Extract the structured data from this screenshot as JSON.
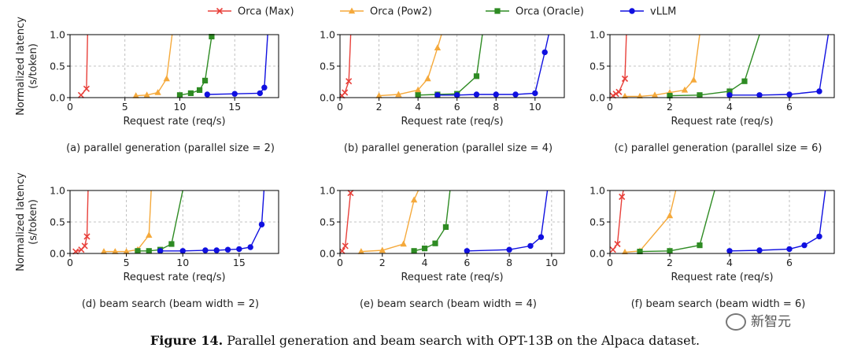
{
  "figure": {
    "caption_label": "Figure 14.",
    "caption_text": "Parallel generation and beam search with OPT-13B on the Alpaca dataset."
  },
  "watermark": {
    "text": "新智元",
    "icon": "wechat-bubble-icon"
  },
  "colors": {
    "orca_max": "#e8403a",
    "orca_pow2": "#f5a93b",
    "orca_oracle": "#2e8b23",
    "vllm": "#1010e0"
  },
  "legend": [
    {
      "name": "Orca (Max)",
      "marker": "x",
      "color": "#e8403a"
    },
    {
      "name": "Orca (Pow2)",
      "marker": "triangle",
      "color": "#f5a93b"
    },
    {
      "name": "Orca (Oracle)",
      "marker": "square",
      "color": "#2e8b23"
    },
    {
      "name": "vLLM",
      "marker": "circle",
      "color": "#1010e0"
    }
  ],
  "chart_data": [
    {
      "type": "line",
      "xlabel": "Request rate (req/s)",
      "ylabel": "Normalized latency (s/token)",
      "xlim": [
        0,
        19
      ],
      "ylim": [
        0,
        1
      ],
      "xticks": [
        "0",
        "5",
        "10",
        "15"
      ],
      "yticks": [
        "0.0",
        "0.5",
        "1.0"
      ],
      "caption": "(a) parallel generation (parallel size = 2)",
      "series": [
        {
          "name": "Orca (Max)",
          "x": [
            1.0,
            1.5,
            1.6
          ],
          "y": [
            0.04,
            0.14,
            1.0
          ]
        },
        {
          "name": "Orca (Pow2)",
          "x": [
            6.0,
            7.0,
            8.0,
            8.8,
            9.3
          ],
          "y": [
            0.03,
            0.04,
            0.08,
            0.3,
            1.0
          ]
        },
        {
          "name": "Orca (Oracle)",
          "x": [
            10.0,
            11.0,
            11.8,
            12.3,
            12.9
          ],
          "y": [
            0.04,
            0.07,
            0.12,
            0.27,
            0.97
          ]
        },
        {
          "name": "vLLM",
          "x": [
            12.5,
            15.0,
            17.3,
            17.7,
            18.0
          ],
          "y": [
            0.05,
            0.06,
            0.07,
            0.16,
            1.0
          ]
        }
      ]
    },
    {
      "type": "line",
      "xlabel": "Request rate (req/s)",
      "ylabel": "Normalized latency (s/token)",
      "xlim": [
        0,
        11.5
      ],
      "ylim": [
        0,
        1
      ],
      "xticks": [
        "0",
        "2",
        "4",
        "6",
        "8",
        "10"
      ],
      "yticks": [
        "0.0",
        "0.5",
        "1.0"
      ],
      "caption": "(b) parallel generation (parallel size = 4)",
      "series": [
        {
          "name": "Orca (Max)",
          "x": [
            0.1,
            0.25,
            0.45,
            0.55
          ],
          "y": [
            0.03,
            0.08,
            0.26,
            1.0
          ]
        },
        {
          "name": "Orca (Pow2)",
          "x": [
            2.0,
            3.0,
            4.0,
            4.5,
            5.0,
            5.2
          ],
          "y": [
            0.03,
            0.05,
            0.12,
            0.3,
            0.79,
            1.0
          ]
        },
        {
          "name": "Orca (Oracle)",
          "x": [
            4.0,
            5.0,
            6.0,
            7.0,
            7.3
          ],
          "y": [
            0.04,
            0.05,
            0.06,
            0.34,
            1.0
          ]
        },
        {
          "name": "vLLM",
          "x": [
            5.0,
            6.0,
            7.0,
            8.0,
            9.0,
            10.0,
            10.5,
            10.7
          ],
          "y": [
            0.04,
            0.04,
            0.05,
            0.05,
            0.05,
            0.07,
            0.72,
            1.0
          ]
        }
      ]
    },
    {
      "type": "line",
      "xlabel": "Request rate (req/s)",
      "ylabel": "Normalized latency (s/token)",
      "xlim": [
        0,
        7.5
      ],
      "ylim": [
        0,
        1
      ],
      "xticks": [
        "0",
        "2",
        "4",
        "6"
      ],
      "yticks": [
        "0.0",
        "0.5",
        "1.0"
      ],
      "caption": "(c) parallel generation (parallel size = 6)",
      "series": [
        {
          "name": "Orca (Max)",
          "x": [
            0.1,
            0.2,
            0.3,
            0.5,
            0.55
          ],
          "y": [
            0.03,
            0.06,
            0.09,
            0.3,
            1.0
          ]
        },
        {
          "name": "Orca (Pow2)",
          "x": [
            0.5,
            1.0,
            1.5,
            2.0,
            2.5,
            2.8,
            3.0
          ],
          "y": [
            0.02,
            0.02,
            0.04,
            0.08,
            0.12,
            0.28,
            1.0
          ]
        },
        {
          "name": "Orca (Oracle)",
          "x": [
            2.0,
            3.0,
            4.0,
            4.5,
            5.0
          ],
          "y": [
            0.03,
            0.04,
            0.1,
            0.26,
            1.0
          ]
        },
        {
          "name": "vLLM",
          "x": [
            4.0,
            5.0,
            6.0,
            7.0,
            7.3
          ],
          "y": [
            0.04,
            0.04,
            0.05,
            0.1,
            1.0
          ]
        }
      ]
    },
    {
      "type": "line",
      "xlabel": "Request rate (req/s)",
      "ylabel": "Normalized latency (s/token)",
      "xlim": [
        0,
        18.5
      ],
      "ylim": [
        0,
        1
      ],
      "xticks": [
        "0",
        "5",
        "10",
        "15"
      ],
      "yticks": [
        "0.0",
        "0.5",
        "1.0"
      ],
      "caption": "(d) beam search (beam width = 2)",
      "series": [
        {
          "name": "Orca (Max)",
          "x": [
            0.5,
            1.0,
            1.3,
            1.5,
            1.6
          ],
          "y": [
            0.03,
            0.06,
            0.12,
            0.27,
            1.0
          ]
        },
        {
          "name": "Orca (Pow2)",
          "x": [
            3.0,
            4.0,
            5.0,
            6.0,
            7.0,
            7.2
          ],
          "y": [
            0.03,
            0.03,
            0.03,
            0.06,
            0.29,
            1.0
          ]
        },
        {
          "name": "Orca (Oracle)",
          "x": [
            6.0,
            7.0,
            8.0,
            9.0,
            10.0
          ],
          "y": [
            0.04,
            0.04,
            0.06,
            0.15,
            1.0
          ]
        },
        {
          "name": "vLLM",
          "x": [
            8.0,
            10.0,
            12.0,
            13.0,
            14.0,
            15.0,
            16.0,
            17.0,
            17.2
          ],
          "y": [
            0.04,
            0.04,
            0.05,
            0.05,
            0.06,
            0.07,
            0.1,
            0.46,
            1.0
          ]
        }
      ]
    },
    {
      "type": "line",
      "xlabel": "Request rate (req/s)",
      "ylabel": "Normalized latency (s/token)",
      "xlim": [
        0,
        10.6
      ],
      "ylim": [
        0,
        1
      ],
      "xticks": [
        "0",
        "2",
        "4",
        "6",
        "8",
        "10"
      ],
      "yticks": [
        "0.0",
        "0.5",
        "1.0"
      ],
      "caption": "(e) beam search (beam width = 4)",
      "series": [
        {
          "name": "Orca (Max)",
          "x": [
            0.1,
            0.25,
            0.5,
            0.6
          ],
          "y": [
            0.04,
            0.12,
            0.96,
            1.0
          ]
        },
        {
          "name": "Orca (Pow2)",
          "x": [
            1.0,
            2.0,
            3.0,
            3.5,
            3.7
          ],
          "y": [
            0.03,
            0.05,
            0.15,
            0.85,
            1.0
          ]
        },
        {
          "name": "Orca (Oracle)",
          "x": [
            3.5,
            4.0,
            4.5,
            5.0,
            5.2
          ],
          "y": [
            0.04,
            0.08,
            0.16,
            0.42,
            1.0
          ]
        },
        {
          "name": "vLLM",
          "x": [
            6.0,
            8.0,
            9.0,
            9.5,
            9.8
          ],
          "y": [
            0.04,
            0.06,
            0.12,
            0.26,
            1.0
          ]
        }
      ]
    },
    {
      "type": "line",
      "xlabel": "Request rate (req/s)",
      "ylabel": "Normalized latency (s/token)",
      "xlim": [
        0,
        7.5
      ],
      "ylim": [
        0,
        1
      ],
      "xticks": [
        "0",
        "2",
        "4",
        "6"
      ],
      "yticks": [
        "0.0",
        "0.5",
        "1.0"
      ],
      "caption": "(f) beam search (beam width = 6)",
      "series": [
        {
          "name": "Orca (Max)",
          "x": [
            0.1,
            0.25,
            0.4,
            0.45
          ],
          "y": [
            0.06,
            0.15,
            0.9,
            1.0
          ]
        },
        {
          "name": "Orca (Pow2)",
          "x": [
            0.5,
            1.0,
            2.0,
            2.2
          ],
          "y": [
            0.02,
            0.04,
            0.6,
            1.0
          ]
        },
        {
          "name": "Orca (Oracle)",
          "x": [
            1.0,
            2.0,
            3.0,
            3.5
          ],
          "y": [
            0.03,
            0.04,
            0.13,
            1.0
          ]
        },
        {
          "name": "vLLM",
          "x": [
            4.0,
            5.0,
            6.0,
            6.5,
            7.0,
            7.2
          ],
          "y": [
            0.04,
            0.05,
            0.07,
            0.13,
            0.27,
            1.0
          ]
        }
      ]
    }
  ]
}
